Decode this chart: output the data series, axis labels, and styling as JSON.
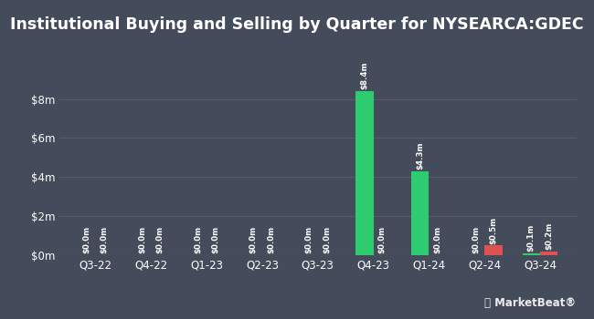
{
  "title": "Institutional Buying and Selling by Quarter for NYSEARCA:GDEC",
  "quarters": [
    "Q3-22",
    "Q4-22",
    "Q1-23",
    "Q2-23",
    "Q3-23",
    "Q4-23",
    "Q1-24",
    "Q2-24",
    "Q3-24"
  ],
  "inflows": [
    0.0,
    0.0,
    0.0,
    0.0,
    0.0,
    8.4,
    4.3,
    0.0,
    0.1
  ],
  "outflows": [
    0.0,
    0.0,
    0.0,
    0.0,
    0.0,
    0.0,
    0.0,
    0.5,
    0.2
  ],
  "inflow_labels": [
    "$0.0m",
    "$0.0m",
    "$0.0m",
    "$0.0m",
    "$0.0m",
    "$8.4m",
    "$4.3m",
    "$0.0m",
    "$0.1m"
  ],
  "outflow_labels": [
    "$0.0m",
    "$0.0m",
    "$0.0m",
    "$0.0m",
    "$0.0m",
    "$0.0m",
    "$0.0m",
    "$0.5m",
    "$0.2m"
  ],
  "inflow_color": "#2ecc71",
  "outflow_color": "#e05252",
  "background_color": "#444c5c",
  "text_color": "#ffffff",
  "grid_color": "#5a6070",
  "bar_width": 0.32,
  "ylim": [
    0,
    9.8
  ],
  "yticks": [
    0,
    2,
    4,
    6,
    8
  ],
  "ytick_labels": [
    "$0m",
    "$2m",
    "$4m",
    "$6m",
    "$8m"
  ],
  "title_fontsize": 12.5,
  "label_fontsize": 6.2,
  "tick_fontsize": 8.5,
  "legend_fontsize": 8.0
}
